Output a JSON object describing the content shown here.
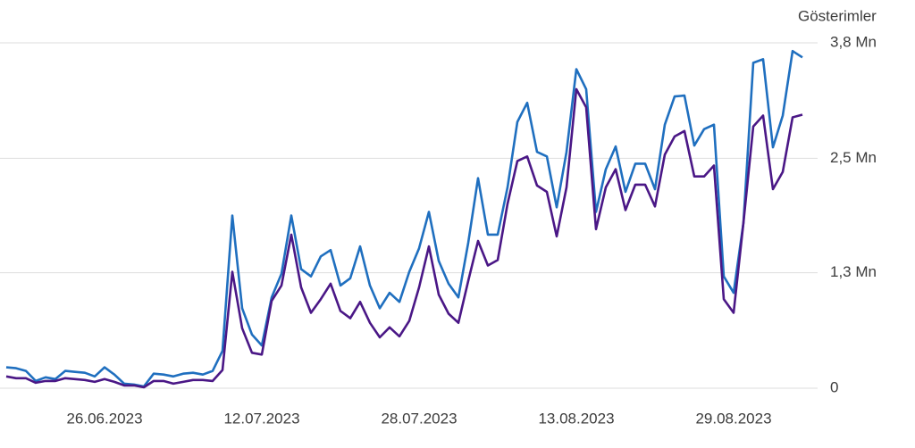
{
  "chart_data": {
    "type": "line",
    "y_axis_title": "Gösterimler",
    "x": [
      "16.06.2023",
      "17.06.2023",
      "18.06.2023",
      "19.06.2023",
      "20.06.2023",
      "21.06.2023",
      "22.06.2023",
      "23.06.2023",
      "24.06.2023",
      "25.06.2023",
      "26.06.2023",
      "27.06.2023",
      "28.06.2023",
      "29.06.2023",
      "30.06.2023",
      "01.07.2023",
      "02.07.2023",
      "03.07.2023",
      "04.07.2023",
      "05.07.2023",
      "06.07.2023",
      "07.07.2023",
      "08.07.2023",
      "09.07.2023",
      "10.07.2023",
      "11.07.2023",
      "12.07.2023",
      "13.07.2023",
      "14.07.2023",
      "15.07.2023",
      "16.07.2023",
      "17.07.2023",
      "18.07.2023",
      "19.07.2023",
      "20.07.2023",
      "21.07.2023",
      "22.07.2023",
      "23.07.2023",
      "24.07.2023",
      "25.07.2023",
      "26.07.2023",
      "27.07.2023",
      "28.07.2023",
      "29.07.2023",
      "30.07.2023",
      "31.07.2023",
      "01.08.2023",
      "02.08.2023",
      "03.08.2023",
      "04.08.2023",
      "05.08.2023",
      "06.08.2023",
      "07.08.2023",
      "08.08.2023",
      "09.08.2023",
      "10.08.2023",
      "11.08.2023",
      "12.08.2023",
      "13.08.2023",
      "14.08.2023",
      "15.08.2023",
      "16.08.2023",
      "17.08.2023",
      "18.08.2023",
      "19.08.2023",
      "20.08.2023",
      "21.08.2023",
      "22.08.2023",
      "23.08.2023",
      "24.08.2023",
      "25.08.2023",
      "26.08.2023",
      "27.08.2023",
      "28.08.2023",
      "29.08.2023",
      "30.08.2023",
      "31.08.2023",
      "01.09.2023",
      "02.09.2023",
      "03.09.2023",
      "04.09.2023",
      "05.09.2023"
    ],
    "series": [
      {
        "color": "#1f6fbf",
        "values": [
          0.23,
          0.22,
          0.19,
          0.08,
          0.12,
          0.1,
          0.19,
          0.18,
          0.17,
          0.13,
          0.23,
          0.15,
          0.05,
          0.04,
          0.02,
          0.16,
          0.15,
          0.13,
          0.16,
          0.17,
          0.15,
          0.19,
          0.41,
          1.9,
          0.88,
          0.59,
          0.47,
          1.0,
          1.26,
          1.9,
          1.31,
          1.23,
          1.45,
          1.52,
          1.13,
          1.21,
          1.56,
          1.13,
          0.88,
          1.05,
          0.95,
          1.28,
          1.54,
          1.94,
          1.4,
          1.15,
          1.0,
          1.6,
          2.31,
          1.69,
          1.69,
          2.21,
          2.93,
          3.14,
          2.6,
          2.55,
          1.99,
          2.6,
          3.51,
          3.29,
          1.94,
          2.41,
          2.66,
          2.16,
          2.47,
          2.47,
          2.19,
          2.9,
          3.21,
          3.22,
          2.67,
          2.85,
          2.9,
          1.23,
          1.05,
          1.82,
          3.58,
          3.62,
          2.65,
          3.0,
          3.71,
          3.64
        ]
      },
      {
        "color": "#4a1786",
        "values": [
          0.13,
          0.11,
          0.11,
          0.06,
          0.08,
          0.08,
          0.11,
          0.1,
          0.09,
          0.07,
          0.1,
          0.07,
          0.03,
          0.03,
          0.01,
          0.08,
          0.08,
          0.05,
          0.07,
          0.09,
          0.09,
          0.08,
          0.2,
          1.28,
          0.66,
          0.39,
          0.37,
          0.96,
          1.13,
          1.69,
          1.11,
          0.83,
          0.98,
          1.15,
          0.85,
          0.77,
          0.95,
          0.72,
          0.56,
          0.67,
          0.57,
          0.74,
          1.11,
          1.56,
          1.03,
          0.82,
          0.72,
          1.18,
          1.62,
          1.35,
          1.41,
          2.03,
          2.5,
          2.55,
          2.23,
          2.16,
          1.67,
          2.21,
          3.29,
          3.09,
          1.75,
          2.21,
          2.41,
          1.96,
          2.24,
          2.24,
          2.0,
          2.57,
          2.77,
          2.83,
          2.33,
          2.33,
          2.45,
          0.98,
          0.83,
          1.82,
          2.88,
          3.0,
          2.19,
          2.38,
          2.98,
          3.01
        ]
      }
    ],
    "ylim": [
      0,
      3.8
    ],
    "yticks": [
      0,
      {
        "value": 1.27,
        "label": "1,3 Mn"
      },
      {
        "value": 2.53,
        "label": "2,5 Mn"
      },
      {
        "value": 3.8,
        "label": "3,8 Mn"
      }
    ],
    "xticks": [
      "26.06.2023",
      "12.07.2023",
      "28.07.2023",
      "13.08.2023",
      "29.08.2023"
    ],
    "grid": true
  }
}
